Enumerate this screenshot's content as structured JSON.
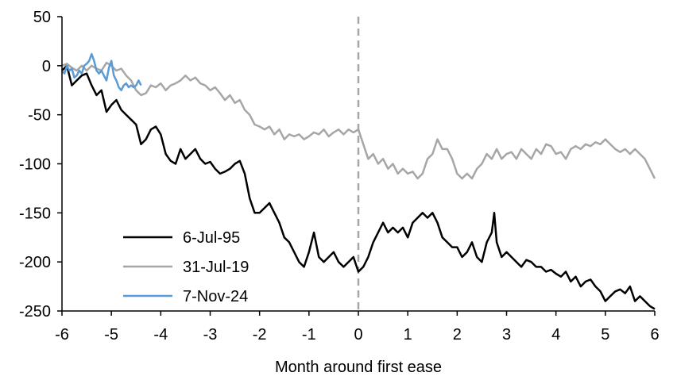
{
  "chart_data": {
    "type": "line",
    "title": "",
    "xlabel": "Month around first ease",
    "ylabel": "",
    "xlim": [
      -6,
      6
    ],
    "ylim": [
      -250,
      50
    ],
    "xticks": [
      -6,
      -5,
      -4,
      -3,
      -2,
      -1,
      0,
      1,
      2,
      3,
      4,
      5,
      6
    ],
    "yticks": [
      50,
      0,
      -50,
      -100,
      -150,
      -200,
      -250
    ],
    "xtick_labels": [
      "-6",
      "-5",
      "-4",
      "-3",
      "-2",
      "-1",
      "0",
      "1",
      "2",
      "3",
      "4",
      "5",
      "6"
    ],
    "ytick_labels": [
      "50",
      "0",
      "-50",
      "-100",
      "-150",
      "-200",
      "-250"
    ],
    "grid": false,
    "legend_position": "lower-left",
    "reference_line": {
      "x": 0,
      "style": "dashed",
      "color": "#a6a6a6"
    },
    "series": [
      {
        "name": "6-Jul-95",
        "color": "#000000",
        "x": [
          -6,
          -5.9,
          -5.8,
          -5.7,
          -5.6,
          -5.5,
          -5.4,
          -5.3,
          -5.2,
          -5.1,
          -5.0,
          -4.9,
          -4.8,
          -4.7,
          -4.6,
          -4.5,
          -4.4,
          -4.3,
          -4.2,
          -4.1,
          -4.0,
          -3.9,
          -3.8,
          -3.7,
          -3.6,
          -3.5,
          -3.4,
          -3.3,
          -3.2,
          -3.1,
          -3.0,
          -2.9,
          -2.8,
          -2.7,
          -2.6,
          -2.5,
          -2.4,
          -2.3,
          -2.2,
          -2.1,
          -2.0,
          -1.9,
          -1.8,
          -1.7,
          -1.6,
          -1.5,
          -1.4,
          -1.3,
          -1.2,
          -1.1,
          -1.0,
          -0.9,
          -0.8,
          -0.7,
          -0.6,
          -0.5,
          -0.4,
          -0.3,
          -0.2,
          -0.1,
          0.0,
          0.1,
          0.2,
          0.3,
          0.4,
          0.5,
          0.6,
          0.7,
          0.8,
          0.9,
          1.0,
          1.1,
          1.2,
          1.3,
          1.4,
          1.5,
          1.6,
          1.7,
          1.8,
          1.9,
          2.0,
          2.1,
          2.2,
          2.3,
          2.4,
          2.5,
          2.6,
          2.7,
          2.75,
          2.8,
          2.9,
          3.0,
          3.1,
          3.2,
          3.3,
          3.4,
          3.5,
          3.6,
          3.7,
          3.8,
          3.9,
          4.0,
          4.1,
          4.2,
          4.3,
          4.4,
          4.5,
          4.6,
          4.7,
          4.8,
          4.9,
          5.0,
          5.1,
          5.2,
          5.3,
          5.4,
          5.5,
          5.6,
          5.7,
          5.8,
          5.9,
          6.0
        ],
        "y": [
          -5,
          0,
          -20,
          -15,
          -10,
          -8,
          -20,
          -30,
          -25,
          -47,
          -40,
          -35,
          -45,
          -50,
          -55,
          -60,
          -80,
          -75,
          -65,
          -62,
          -70,
          -90,
          -97,
          -100,
          -85,
          -95,
          -90,
          -85,
          -95,
          -100,
          -98,
          -105,
          -110,
          -108,
          -105,
          -100,
          -97,
          -110,
          -135,
          -150,
          -150,
          -145,
          -140,
          -150,
          -160,
          -175,
          -180,
          -190,
          -200,
          -205,
          -190,
          -170,
          -195,
          -200,
          -195,
          -190,
          -200,
          -205,
          -200,
          -195,
          -210,
          -205,
          -195,
          -180,
          -170,
          -160,
          -170,
          -165,
          -170,
          -165,
          -175,
          -160,
          -155,
          -150,
          -155,
          -150,
          -160,
          -175,
          -180,
          -185,
          -185,
          -195,
          -190,
          -180,
          -195,
          -200,
          -180,
          -170,
          -150,
          -180,
          -195,
          -190,
          -195,
          -200,
          -205,
          -198,
          -200,
          -205,
          -205,
          -210,
          -208,
          -212,
          -215,
          -210,
          -220,
          -215,
          -225,
          -220,
          -218,
          -225,
          -230,
          -240,
          -235,
          -230,
          -228,
          -232,
          -225,
          -240,
          -235,
          -240,
          -245,
          -248
        ]
      },
      {
        "name": "31-Jul-19",
        "color": "#a6a6a6",
        "x": [
          -6,
          -5.9,
          -5.8,
          -5.7,
          -5.6,
          -5.5,
          -5.4,
          -5.3,
          -5.2,
          -5.1,
          -5.0,
          -4.9,
          -4.8,
          -4.7,
          -4.6,
          -4.5,
          -4.4,
          -4.3,
          -4.2,
          -4.1,
          -4.0,
          -3.9,
          -3.8,
          -3.7,
          -3.6,
          -3.5,
          -3.4,
          -3.3,
          -3.2,
          -3.1,
          -3.0,
          -2.9,
          -2.8,
          -2.7,
          -2.6,
          -2.5,
          -2.4,
          -2.3,
          -2.2,
          -2.1,
          -2.0,
          -1.9,
          -1.8,
          -1.7,
          -1.6,
          -1.5,
          -1.4,
          -1.3,
          -1.2,
          -1.1,
          -1.0,
          -0.9,
          -0.8,
          -0.7,
          -0.6,
          -0.5,
          -0.4,
          -0.3,
          -0.2,
          -0.1,
          0.0,
          0.1,
          0.2,
          0.3,
          0.4,
          0.5,
          0.6,
          0.7,
          0.8,
          0.9,
          1.0,
          1.1,
          1.2,
          1.3,
          1.4,
          1.5,
          1.6,
          1.7,
          1.8,
          1.9,
          2.0,
          2.1,
          2.2,
          2.3,
          2.4,
          2.5,
          2.6,
          2.7,
          2.8,
          2.9,
          3.0,
          3.1,
          3.2,
          3.3,
          3.4,
          3.5,
          3.6,
          3.7,
          3.8,
          3.9,
          4.0,
          4.1,
          4.2,
          4.3,
          4.4,
          4.5,
          4.6,
          4.7,
          4.8,
          4.9,
          5.0,
          5.1,
          5.2,
          5.3,
          5.4,
          5.5,
          5.6,
          5.7,
          5.8,
          5.9,
          6.0
        ],
        "y": [
          0,
          2,
          -2,
          -5,
          0,
          -5,
          0,
          -3,
          -5,
          3,
          0,
          -5,
          -3,
          -10,
          -15,
          -25,
          -30,
          -28,
          -20,
          -22,
          -18,
          -25,
          -20,
          -18,
          -15,
          -10,
          -15,
          -12,
          -18,
          -20,
          -25,
          -22,
          -28,
          -35,
          -30,
          -38,
          -35,
          -45,
          -50,
          -60,
          -62,
          -65,
          -62,
          -70,
          -65,
          -75,
          -70,
          -72,
          -70,
          -75,
          -72,
          -68,
          -70,
          -65,
          -72,
          -68,
          -65,
          -70,
          -65,
          -68,
          -65,
          -80,
          -95,
          -90,
          -100,
          -95,
          -105,
          -100,
          -110,
          -105,
          -110,
          -108,
          -115,
          -110,
          -95,
          -90,
          -75,
          -85,
          -85,
          -95,
          -110,
          -115,
          -110,
          -115,
          -105,
          -100,
          -90,
          -95,
          -85,
          -95,
          -90,
          -88,
          -95,
          -85,
          -90,
          -95,
          -85,
          -90,
          -80,
          -82,
          -90,
          -88,
          -95,
          -85,
          -82,
          -85,
          -80,
          -82,
          -78,
          -80,
          -75,
          -80,
          -85,
          -88,
          -85,
          -90,
          -85,
          -90,
          -95,
          -105,
          -115
        ]
      },
      {
        "name": "7-Nov-24",
        "color": "#5b9bd5",
        "x": [
          -6,
          -5.95,
          -5.9,
          -5.85,
          -5.8,
          -5.75,
          -5.7,
          -5.65,
          -5.6,
          -5.55,
          -5.5,
          -5.45,
          -5.4,
          -5.35,
          -5.3,
          -5.25,
          -5.2,
          -5.15,
          -5.1,
          -5.05,
          -5.0,
          -4.95,
          -4.9,
          -4.85,
          -4.8,
          -4.75,
          -4.7,
          -4.65,
          -4.6,
          -4.55,
          -4.5,
          -4.45,
          -4.4
        ],
        "y": [
          -5,
          -8,
          0,
          -5,
          -3,
          -12,
          -10,
          -5,
          -8,
          0,
          2,
          5,
          12,
          5,
          -5,
          -8,
          -5,
          -10,
          -15,
          -2,
          5,
          -10,
          -15,
          -22,
          -25,
          -20,
          -18,
          -22,
          -20,
          -22,
          -20,
          -15,
          -20
        ]
      }
    ]
  }
}
